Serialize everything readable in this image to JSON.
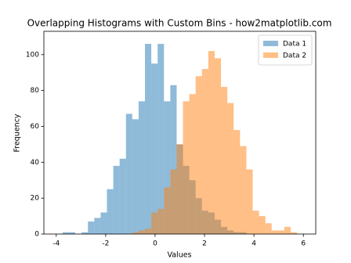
{
  "chart_data": {
    "type": "histogram",
    "title": "Overlapping Histograms with Custom Bins - how2matplotlib.com",
    "xlabel": "Values",
    "ylabel": "Frequency",
    "bins": [
      -4,
      -3.744,
      -3.487,
      -3.231,
      -2.974,
      -2.718,
      -2.462,
      -2.205,
      -1.949,
      -1.692,
      -1.436,
      -1.179,
      -0.923,
      -0.667,
      -0.41,
      -0.154,
      0.103,
      0.359,
      0.615,
      0.872,
      1.128,
      1.385,
      1.641,
      1.897,
      2.154,
      2.41,
      2.667,
      2.923,
      3.179,
      3.436,
      3.692,
      3.949,
      4.205,
      4.462,
      4.718,
      4.974,
      5.231,
      5.487,
      5.744,
      6
    ],
    "series": [
      {
        "name": "Data 1",
        "color": "#1f77b4",
        "values": [
          0,
          1,
          1,
          0,
          1,
          7,
          9,
          12,
          25,
          38,
          42,
          67,
          64,
          74,
          106,
          95,
          106,
          74,
          83,
          50,
          38,
          30,
          20,
          13,
          12,
          8,
          4,
          2,
          1,
          1,
          0,
          0,
          0,
          0,
          0,
          0,
          0,
          0,
          0
        ]
      },
      {
        "name": "Data 2",
        "color": "#ff7f0e",
        "values": [
          0,
          0,
          0,
          0,
          0,
          0,
          0,
          0,
          0,
          0,
          0,
          0,
          1,
          2,
          3,
          12,
          14,
          26,
          36,
          50,
          74,
          78,
          88,
          92,
          102,
          98,
          82,
          73,
          58,
          49,
          36,
          13,
          10,
          6,
          2,
          2,
          4,
          1,
          0
        ]
      }
    ],
    "alpha": 0.5,
    "xlim": [
      -4.5,
      6.5
    ],
    "xticks": [
      -4,
      -2,
      0,
      2,
      4,
      6
    ],
    "ylim": [
      0,
      113
    ],
    "yticks": [
      0,
      20,
      40,
      60,
      80,
      100
    ],
    "legend": "upper right"
  }
}
